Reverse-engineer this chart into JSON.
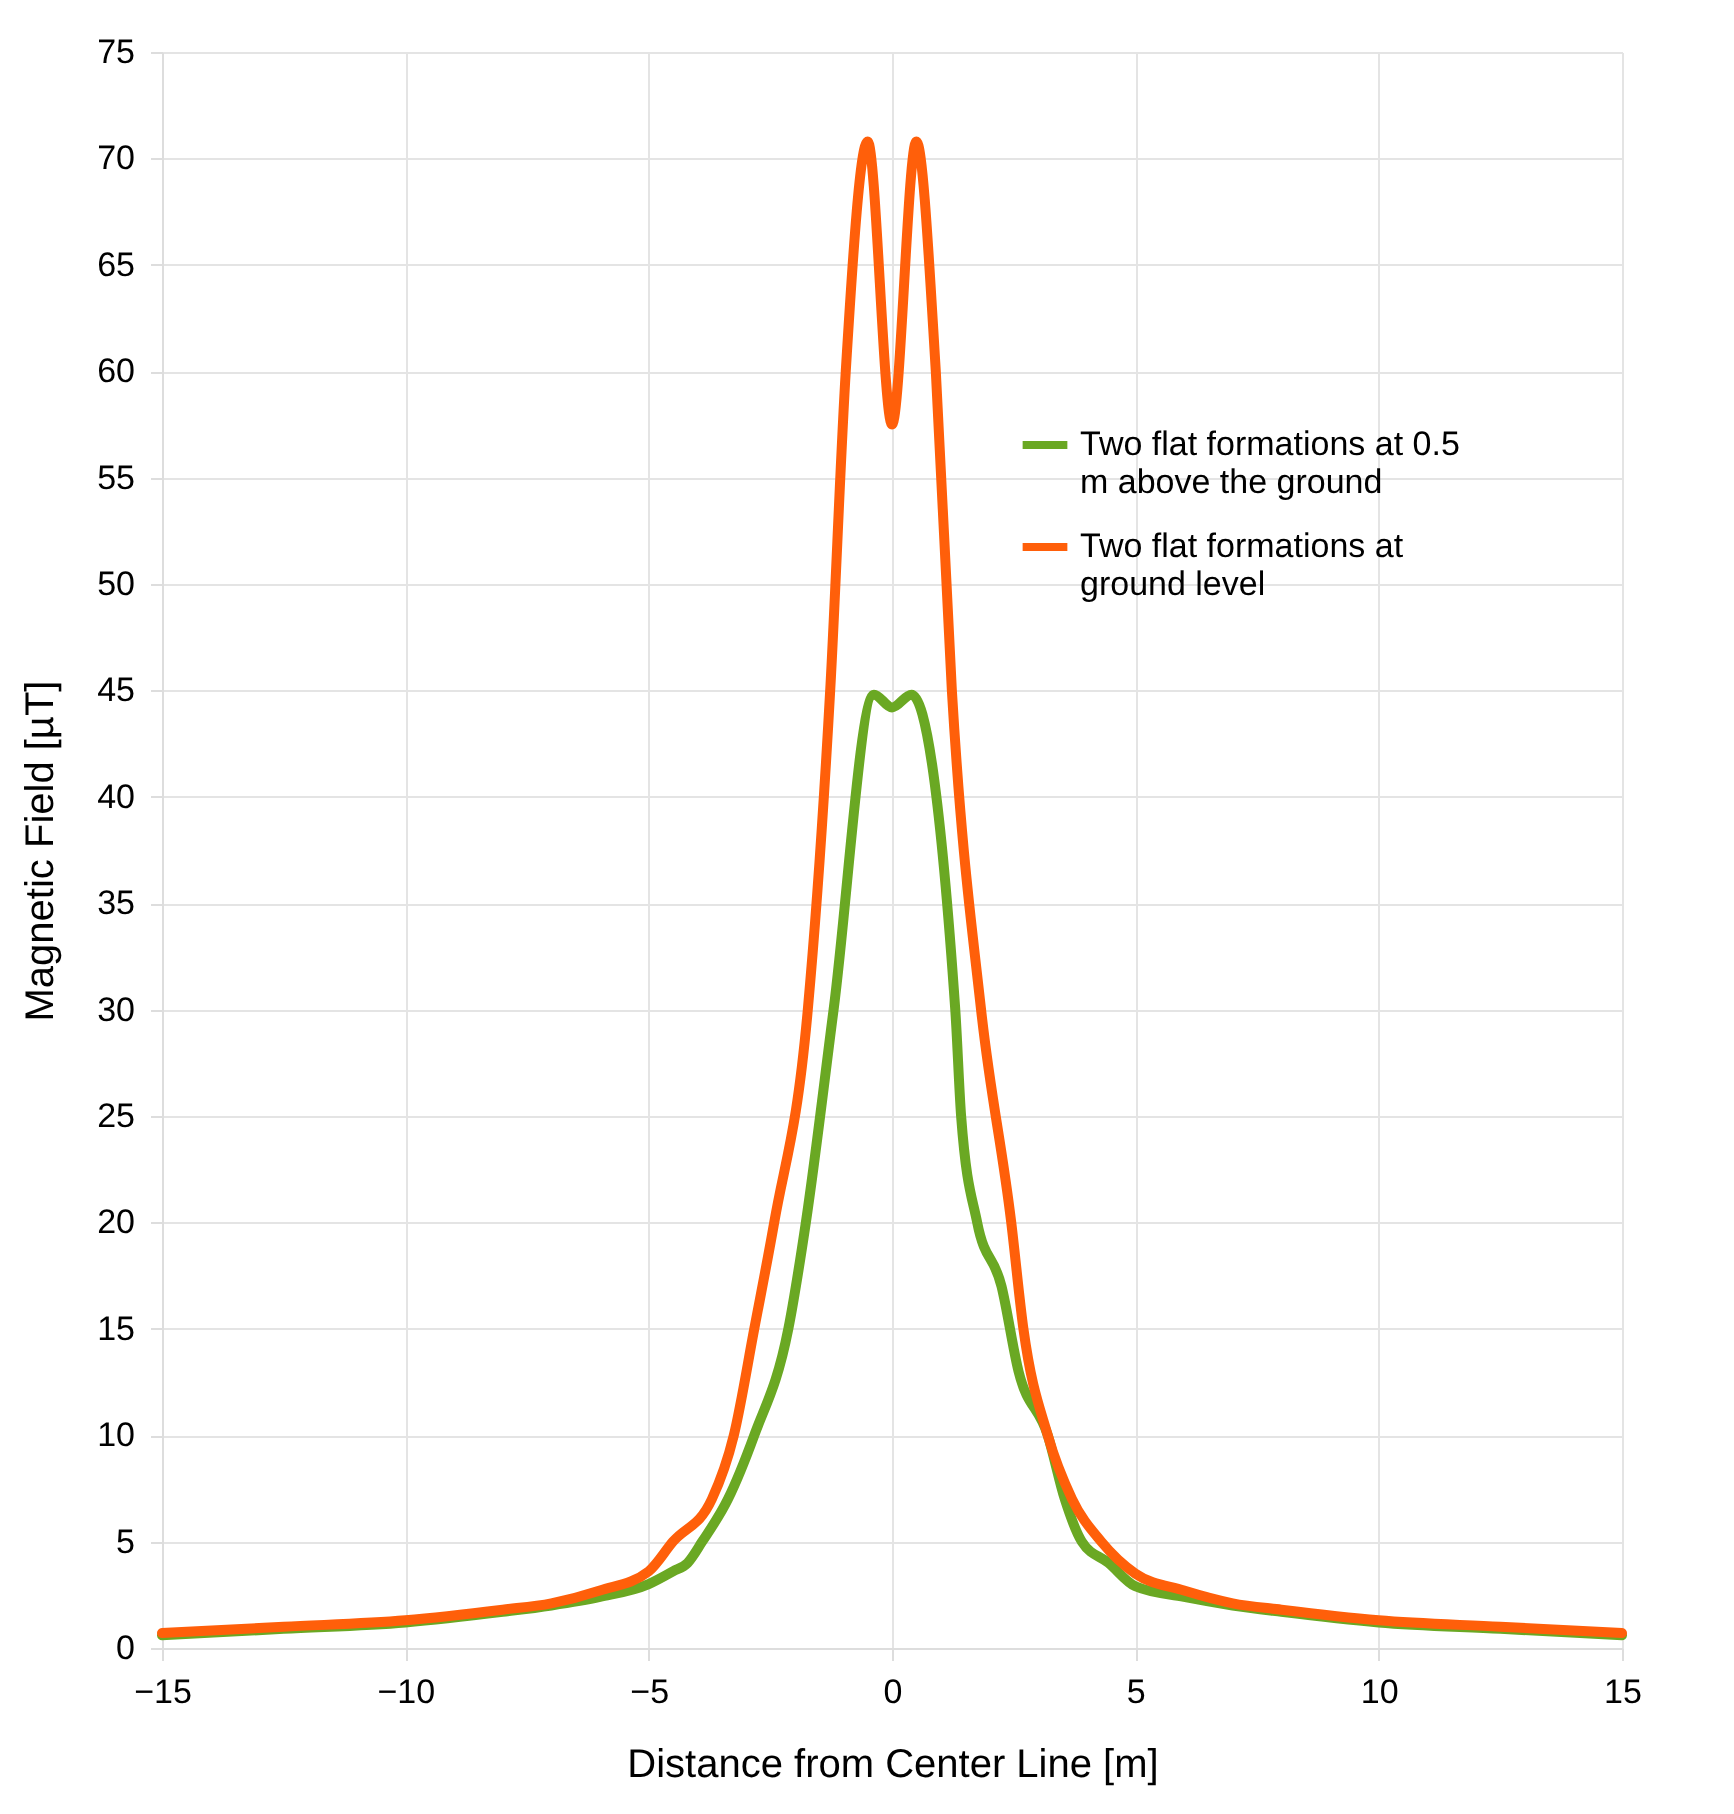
{
  "chart_data": {
    "type": "line",
    "xlabel": "Distance from Center Line [m]",
    "ylabel": "Magnetic Field [µT]",
    "xlim": [
      -15,
      15
    ],
    "xticks": [
      -15,
      -10,
      -5,
      0,
      5,
      10,
      15
    ],
    "ylim": [
      0,
      75
    ],
    "yticks": [
      0,
      5,
      10,
      15,
      20,
      25,
      30,
      35,
      40,
      45,
      50,
      55,
      60,
      65,
      70,
      75
    ],
    "grid": true,
    "legend": "right",
    "line_style": "solid",
    "marker": "none",
    "series": [
      {
        "name": "Two flat formations at 0.5 m above the ground",
        "color": "#6aa823",
        "x": [
          -15,
          -12.5,
          -10,
          -8,
          -7,
          -6,
          -5,
          -4.5,
          -4.2,
          -3.9,
          -3.37,
          -2.83,
          -2.13,
          -1.77,
          -1.2,
          -0.37,
          0,
          0.4,
          1.3,
          1.42,
          1.75,
          2.25,
          2.6,
          3.2,
          3.55,
          3.9,
          4.45,
          5,
          6,
          7,
          8,
          10,
          12.5,
          15
        ],
        "values": [
          0.6,
          0.9,
          1.2,
          1.7,
          2.0,
          2.4,
          3.0,
          3.6,
          4,
          5,
          7,
          10,
          15,
          20,
          30,
          44.8,
          44.2,
          44.8,
          30,
          25,
          20,
          17,
          13,
          10,
          7,
          5,
          4,
          2.9,
          2.4,
          2.0,
          1.7,
          1.2,
          0.9,
          0.6
        ]
      },
      {
        "name": "Two flat formations at ground level",
        "color": "#ff5f0a",
        "x": [
          -15,
          -12.5,
          -10,
          -8,
          -7,
          -6,
          -5,
          -4.5,
          -3.7,
          -3.25,
          -2.83,
          -2.42,
          -1.73,
          -1.27,
          -0.95,
          -0.5,
          0,
          0.5,
          0.9,
          1.23,
          1.83,
          2.45,
          2.7,
          3.2,
          3.7,
          4.3,
          5,
          6,
          7,
          8,
          10,
          12.5,
          15
        ],
        "values": [
          0.7,
          1.0,
          1.3,
          1.8,
          2.1,
          2.7,
          3.6,
          5,
          7,
          10,
          15,
          20,
          30,
          45,
          60,
          70.8,
          57.5,
          70.8,
          60,
          45,
          30,
          20,
          15,
          10,
          7,
          5,
          3.5,
          2.7,
          2.1,
          1.8,
          1.3,
          1.0,
          0.7
        ]
      }
    ]
  }
}
